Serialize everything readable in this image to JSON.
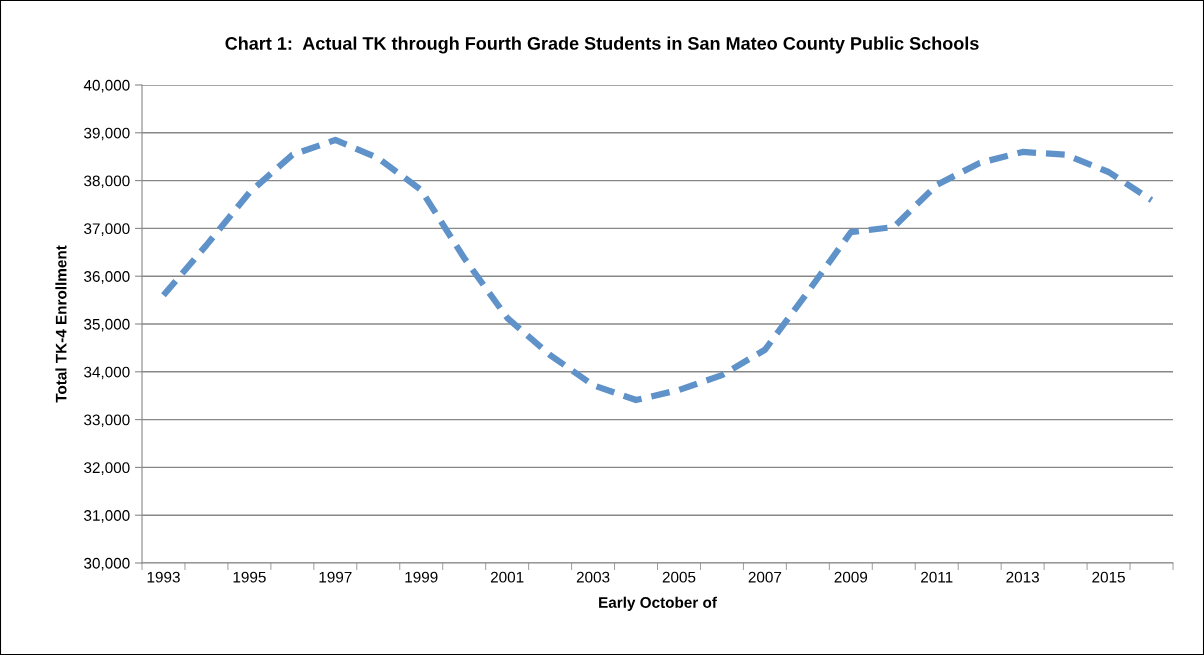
{
  "chart_data": {
    "type": "line",
    "title": "Chart 1:  Actual TK through Fourth Grade Students in San Mateo County Public Schools",
    "xlabel": "Early October of",
    "ylabel": "Total TK-4 Enrollment",
    "categories": [
      "1993",
      null,
      "1995",
      null,
      "1997",
      null,
      "1999",
      null,
      "2001",
      null,
      "2003",
      null,
      "2005",
      null,
      "2007",
      null,
      "2009",
      null,
      "2011",
      null,
      "2013",
      null,
      "2015",
      null
    ],
    "series": [
      {
        "color": "#5f92c9",
        "values": [
          35600,
          36650,
          37750,
          38540,
          38850,
          38470,
          37800,
          36380,
          35130,
          34350,
          33720,
          33410,
          33620,
          33930,
          34460,
          35670,
          36920,
          37030,
          37910,
          38370,
          38600,
          38540,
          38180,
          37590
        ]
      }
    ],
    "ylim": [
      30000,
      40000
    ],
    "yticks": [
      {
        "value": 30000,
        "label": "30,000"
      },
      {
        "value": 31000,
        "label": "31,000"
      },
      {
        "value": 32000,
        "label": "32,000"
      },
      {
        "value": 33000,
        "label": "33,000"
      },
      {
        "value": 34000,
        "label": "34,000"
      },
      {
        "value": 35000,
        "label": "35,000"
      },
      {
        "value": 36000,
        "label": "36,000"
      },
      {
        "value": 37000,
        "label": "37,000"
      },
      {
        "value": 38000,
        "label": "38,000"
      },
      {
        "value": 39000,
        "label": "39,000"
      },
      {
        "value": 40000,
        "label": "40,000"
      }
    ],
    "grid": "y",
    "marker": "none",
    "line_style": "dashed"
  }
}
